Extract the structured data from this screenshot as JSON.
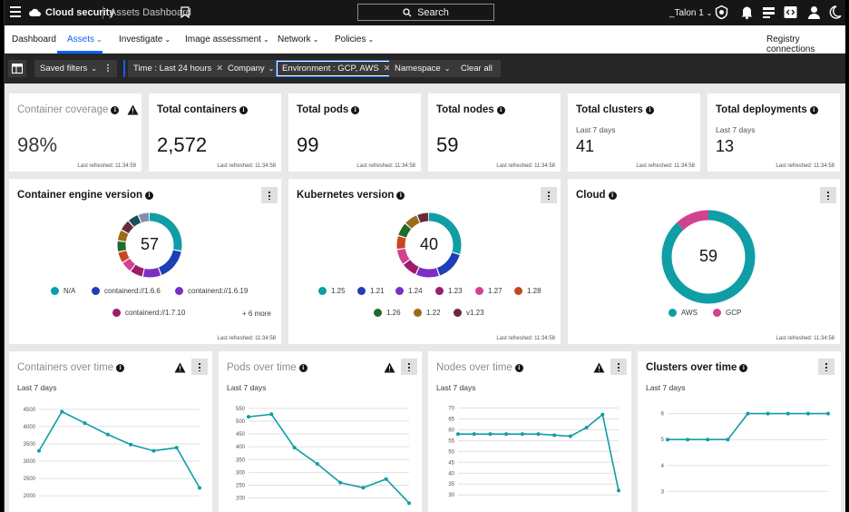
{
  "topbar": {
    "app_name": "Cloud security",
    "page_name": "Assets Dashboard",
    "search_label": "Search",
    "tenant": "_Talon 1"
  },
  "nav": {
    "items": [
      {
        "label": "Dashboard"
      },
      {
        "label": "Assets"
      },
      {
        "label": "Investigate"
      },
      {
        "label": "Image assessment"
      },
      {
        "label": "Network"
      },
      {
        "label": "Policies"
      }
    ],
    "registry": "Registry connections"
  },
  "filters": {
    "saved": "Saved filters",
    "time": "Time :  Last 24 hours",
    "company": "Company",
    "environment": "Environment :  GCP, AWS",
    "namespace": "Namespace",
    "clear": "Clear all"
  },
  "stats": [
    {
      "title": "Container coverage",
      "value": "98%",
      "refreshed": "Last refreshed: 11:34:59"
    },
    {
      "title": "Total containers",
      "value": "2,572",
      "refreshed": "Last refreshed: 11:34:58"
    },
    {
      "title": "Total pods",
      "value": "99",
      "refreshed": "Last refreshed: 11:34:58"
    },
    {
      "title": "Total nodes",
      "value": "59",
      "refreshed": "Last refreshed: 11:34:58"
    },
    {
      "title": "Total clusters",
      "sub": "Last 7 days",
      "value": "41",
      "refreshed": "Last refreshed: 11:34:58"
    },
    {
      "title": "Total deployments",
      "sub": "Last 7 days",
      "value": "13",
      "refreshed": "Last refreshed: 11:34:58"
    }
  ],
  "donuts": [
    {
      "title": "Container engine version",
      "center": "57",
      "refreshed": "Last refreshed: 11:34:58",
      "segments": [
        {
          "value": 0.3,
          "color": "#0f9ea5"
        },
        {
          "value": 0.17,
          "color": "#1d3fb7"
        },
        {
          "value": 0.1,
          "color": "#7b2fc4"
        },
        {
          "value": 0.07,
          "color": "#9d1c6b"
        },
        {
          "value": 0.06,
          "color": "#d1428f"
        },
        {
          "value": 0.06,
          "color": "#c9461f"
        },
        {
          "value": 0.06,
          "color": "#1f6b2c"
        },
        {
          "value": 0.06,
          "color": "#9b6b16"
        },
        {
          "value": 0.06,
          "color": "#6b2a3c"
        },
        {
          "value": 0.06,
          "color": "#1a4f5e"
        },
        {
          "value": 0.06,
          "color": "#7f8fb0"
        }
      ],
      "legend": [
        {
          "label": "N/A",
          "color": "#0f9ea5"
        },
        {
          "label": "containerd://1.6.6",
          "color": "#1d3fb7"
        },
        {
          "label": "containerd://1.6.19",
          "color": "#7b2fc4"
        },
        {
          "label": "containerd://1.7.10",
          "color": "#9d1c6b"
        }
      ],
      "more": "+ 6 more"
    },
    {
      "title": "Kubernetes version",
      "center": "40",
      "refreshed": "Last refreshed: 11:34:58",
      "segments": [
        {
          "value": 0.3,
          "color": "#0f9ea5"
        },
        {
          "value": 0.15,
          "color": "#1d3fb7"
        },
        {
          "value": 0.12,
          "color": "#7b2fc4"
        },
        {
          "value": 0.08,
          "color": "#9d1c6b"
        },
        {
          "value": 0.08,
          "color": "#d1428f"
        },
        {
          "value": 0.07,
          "color": "#c9461f"
        },
        {
          "value": 0.07,
          "color": "#1f6b2c"
        },
        {
          "value": 0.07,
          "color": "#9b6b16"
        },
        {
          "value": 0.06,
          "color": "#6b2a3c"
        }
      ],
      "legend": [
        {
          "label": "1.25",
          "color": "#0f9ea5"
        },
        {
          "label": "1.21",
          "color": "#1d3fb7"
        },
        {
          "label": "1.24",
          "color": "#7b2fc4"
        },
        {
          "label": "1.23",
          "color": "#9d1c6b"
        },
        {
          "label": "1.27",
          "color": "#d1428f"
        },
        {
          "label": "1.28",
          "color": "#c9461f"
        },
        {
          "label": "1.26",
          "color": "#1f6b2c"
        },
        {
          "label": "1.22",
          "color": "#9b6b16"
        },
        {
          "label": "v1.23",
          "color": "#6b2a3c"
        }
      ]
    },
    {
      "title": "Cloud",
      "center": "59",
      "refreshed": "Last refreshed: 11:34:58",
      "segments": [
        {
          "value": 0.88,
          "color": "#0f9ea5"
        },
        {
          "value": 0.12,
          "color": "#d1428f"
        }
      ],
      "legend": [
        {
          "label": "AWS",
          "color": "#0f9ea5"
        },
        {
          "label": "GCP",
          "color": "#d1428f"
        }
      ]
    }
  ],
  "chart_data": [
    {
      "type": "line",
      "title": "Containers over time",
      "subtitle": "Last 7 days",
      "ylim": [
        1900,
        4600
      ],
      "yticks": [
        2000,
        2500,
        3000,
        3500,
        4000,
        4500
      ],
      "x": [
        0,
        1,
        2,
        3,
        4,
        5,
        6,
        7
      ],
      "values": [
        3300,
        4430,
        4100,
        3770,
        3480,
        3300,
        3390,
        2230
      ],
      "color": "#0f9ea5"
    },
    {
      "type": "line",
      "title": "Pods over time",
      "subtitle": "Last 7 days",
      "ylim": [
        195,
        560
      ],
      "yticks": [
        200,
        250,
        300,
        350,
        400,
        450,
        500,
        550
      ],
      "x": [
        0,
        1,
        2,
        3,
        4,
        5,
        6,
        7
      ],
      "values": [
        517,
        527,
        397,
        333,
        260,
        240,
        274,
        180
      ],
      "color": "#0f9ea5"
    },
    {
      "type": "line",
      "title": "Nodes over time",
      "subtitle": "Last 7 days",
      "ylim": [
        28,
        71
      ],
      "yticks": [
        30,
        35,
        40,
        45,
        50,
        55,
        60,
        65,
        70
      ],
      "x": [
        0,
        1,
        2,
        3,
        4,
        5,
        6,
        7,
        8,
        9,
        10
      ],
      "values": [
        58,
        58,
        58,
        58,
        58,
        58,
        57.5,
        57,
        61,
        67,
        32
      ],
      "color": "#0f9ea5"
    },
    {
      "type": "line",
      "title": "Clusters over time",
      "subtitle": "Last 7 days",
      "ylim": [
        2.7,
        6.3
      ],
      "yticks": [
        3,
        4,
        5,
        6
      ],
      "x": [
        0,
        1,
        2,
        3,
        4,
        5,
        6,
        7,
        8
      ],
      "values": [
        5,
        5,
        5,
        5,
        6,
        6,
        6,
        6,
        6
      ],
      "color": "#0f9ea5"
    }
  ]
}
